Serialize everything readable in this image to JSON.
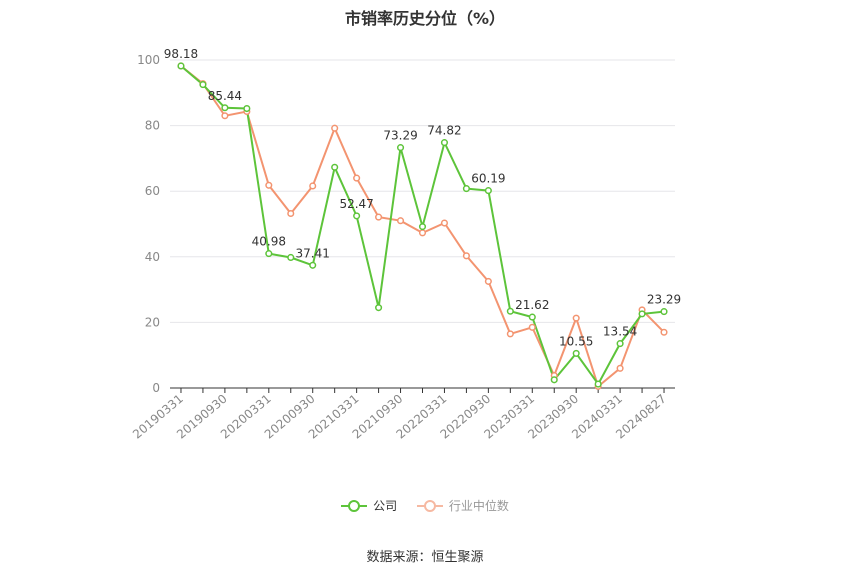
{
  "colors": {
    "company": "#5dc43a",
    "industry": "#f39470",
    "axis": "#333333",
    "grid": "#e6e6ea",
    "tick": "#888888"
  },
  "chart_data": {
    "type": "line",
    "title": "市销率历史分位（%）",
    "ylim": [
      0,
      100
    ],
    "yticks": [
      0,
      20,
      40,
      60,
      80,
      100
    ],
    "x_tick_labels": [
      "20190331",
      "20190930",
      "20200331",
      "20200930",
      "20210331",
      "20210930",
      "20220331",
      "20220930",
      "20230331",
      "20230930",
      "20240331",
      "20240827"
    ],
    "x": [
      "20190331",
      "20190630",
      "20190930",
      "20191231",
      "20200331",
      "20200630",
      "20200930",
      "20201231",
      "20210331",
      "20210630",
      "20210930",
      "20211231",
      "20220331",
      "20220630",
      "20220930",
      "20221231",
      "20230331",
      "20230630",
      "20230930",
      "20231231",
      "20240331",
      "20240630",
      "20240827"
    ],
    "series": [
      {
        "name": "公司",
        "values": [
          98.18,
          92.5,
          85.44,
          85.2,
          40.98,
          39.8,
          37.41,
          67.3,
          52.47,
          24.5,
          73.29,
          49.2,
          74.82,
          60.8,
          60.19,
          23.4,
          21.62,
          2.5,
          10.55,
          1.2,
          13.54,
          22.6,
          23.29
        ],
        "labels": {
          "0": "98.18",
          "2": "85.44",
          "4": "40.98",
          "6": "37.41",
          "8": "52.47",
          "10": "73.29",
          "12": "74.82",
          "14": "60.19",
          "16": "21.62",
          "18": "10.55",
          "20": "13.54",
          "22": "23.29"
        }
      },
      {
        "name": "行业中位数",
        "values": [
          98.18,
          92.8,
          83.0,
          84.3,
          61.8,
          53.2,
          61.6,
          79.2,
          64.0,
          52.1,
          51.0,
          47.3,
          50.3,
          40.3,
          32.5,
          16.5,
          18.5,
          3.8,
          21.3,
          0.5,
          6.0,
          23.8,
          17.0
        ]
      }
    ]
  },
  "legend": {
    "company": "公司",
    "industry": "行业中位数"
  },
  "source": "数据来源：恒生聚源"
}
